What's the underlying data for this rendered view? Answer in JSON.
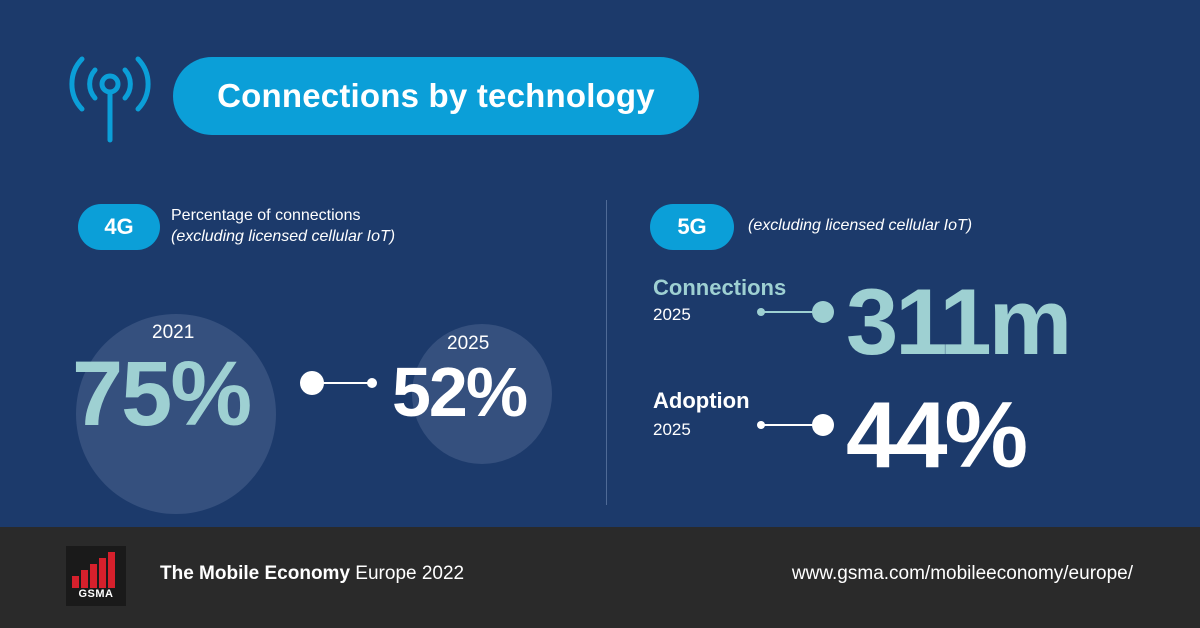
{
  "header": {
    "title": "Connections by technology",
    "icon": "antenna-icon"
  },
  "left": {
    "badge": "4G",
    "subtitle_line1": "Percentage of connections",
    "subtitle_line2": "(excluding licensed cellular IoT)",
    "from": {
      "year": "2021",
      "value": "75%"
    },
    "to": {
      "year": "2025",
      "value": "52%"
    }
  },
  "right": {
    "badge": "5G",
    "subtitle": "(excluding licensed cellular IoT)",
    "connections": {
      "label": "Connections",
      "year": "2025",
      "value": "311m"
    },
    "adoption": {
      "label": "Adoption",
      "year": "2025",
      "value": "44%"
    }
  },
  "footer": {
    "logo_text": "GSMA",
    "title_bold": "The Mobile Economy",
    "title_rest": " Europe 2022",
    "url": "www.gsma.com/mobileeconomy/europe/"
  },
  "colors": {
    "background": "#1c3a6b",
    "accent_blue": "#0b9fd8",
    "teal_text": "#9ed0d2",
    "footer": "#2a2a2a",
    "logo_red": "#d6202c"
  }
}
